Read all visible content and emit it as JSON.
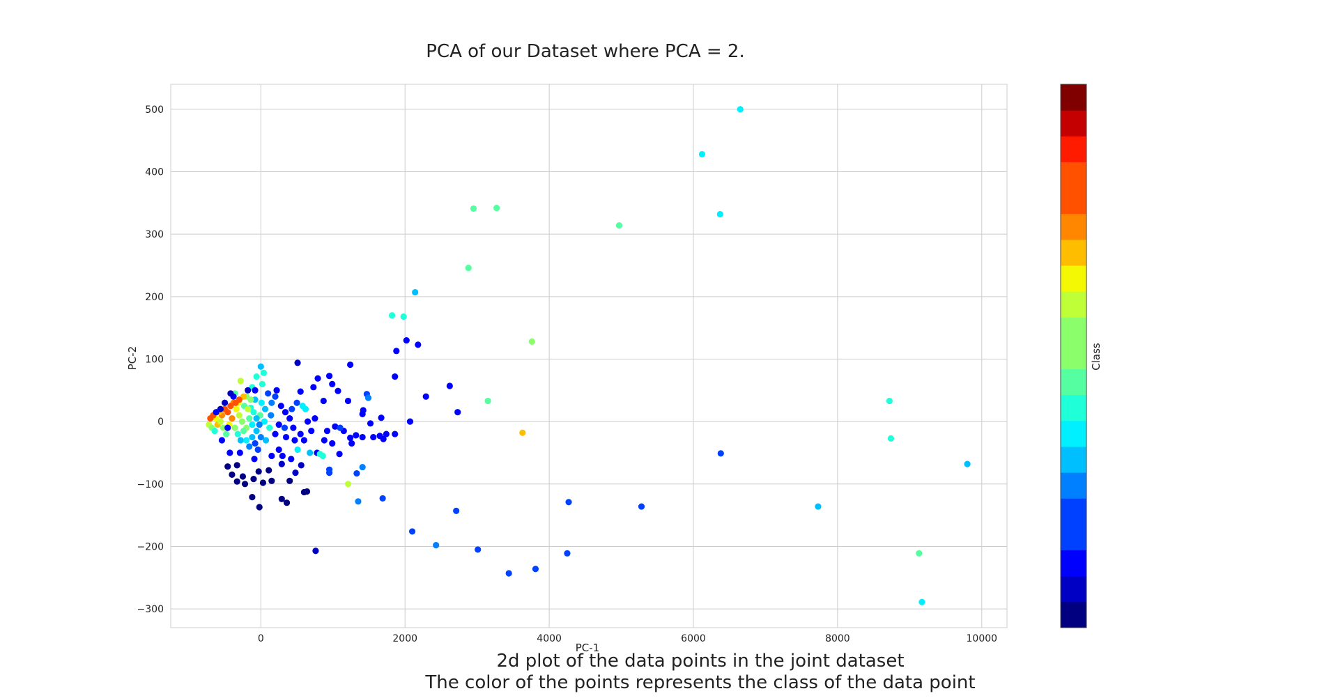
{
  "chart_data": {
    "type": "scatter",
    "title": "PCA of our Dataset where PCA = 2.",
    "xlabel": "PC-1",
    "ylabel": "PC-2",
    "xlim": [
      -1250,
      10350
    ],
    "ylim": [
      -330,
      540
    ],
    "xticks": [
      0,
      2000,
      4000,
      6000,
      8000,
      10000
    ],
    "xtick_labels": [
      "0",
      "2000",
      "4000",
      "6000",
      "8000",
      "10000"
    ],
    "yticks": [
      -300,
      -200,
      -100,
      0,
      100,
      200,
      300,
      400,
      500
    ],
    "ytick_labels": [
      "−300",
      "−200",
      "−100",
      "0",
      "100",
      "200",
      "300",
      "400",
      "500"
    ],
    "grid": true,
    "colorbar": {
      "label": "Class",
      "cmap": "jet",
      "n_bins": 21,
      "range": [
        0,
        20
      ]
    },
    "colors": {
      "background": "#ffffff",
      "grid": "#cccccc",
      "text": "#222222",
      "jet": [
        "#000080",
        "#0000c4",
        "#0000ff",
        "#0040ff",
        "#0080ff",
        "#00bfff",
        "#00f0ff",
        "#1fffd8",
        "#55ffa1",
        "#8aff6b",
        "#bfff37",
        "#f4f802",
        "#ffbd00",
        "#ff8700",
        "#ff5100",
        "#ff1b00",
        "#c40000",
        "#800000"
      ]
    },
    "points": [
      {
        "x": 6650,
        "y": 500,
        "c": 7
      },
      {
        "x": 6120,
        "y": 428,
        "c": 7
      },
      {
        "x": 6370,
        "y": 332,
        "c": 7
      },
      {
        "x": 2950,
        "y": 341,
        "c": 9
      },
      {
        "x": 3270,
        "y": 342,
        "c": 9
      },
      {
        "x": 4970,
        "y": 314,
        "c": 9
      },
      {
        "x": 2880,
        "y": 246,
        "c": 9
      },
      {
        "x": 2140,
        "y": 207,
        "c": 6
      },
      {
        "x": 1820,
        "y": 170,
        "c": 8
      },
      {
        "x": 1980,
        "y": 168,
        "c": 8
      },
      {
        "x": 3760,
        "y": 128,
        "c": 11
      },
      {
        "x": 2020,
        "y": 130,
        "c": 2
      },
      {
        "x": 2180,
        "y": 123,
        "c": 2
      },
      {
        "x": 1880,
        "y": 113,
        "c": 2
      },
      {
        "x": 1860,
        "y": 72,
        "c": 2
      },
      {
        "x": 2620,
        "y": 57,
        "c": 2
      },
      {
        "x": 2290,
        "y": 40,
        "c": 2
      },
      {
        "x": 3150,
        "y": 33,
        "c": 9
      },
      {
        "x": 2730,
        "y": 15,
        "c": 2
      },
      {
        "x": 2070,
        "y": 0,
        "c": 2
      },
      {
        "x": 3630,
        "y": -18,
        "c": 14
      },
      {
        "x": 8720,
        "y": 33,
        "c": 8
      },
      {
        "x": 8740,
        "y": -27,
        "c": 8
      },
      {
        "x": 6380,
        "y": -51,
        "c": 4
      },
      {
        "x": 9800,
        "y": -68,
        "c": 6
      },
      {
        "x": 1210,
        "y": -100,
        "c": 12
      },
      {
        "x": 1350,
        "y": -128,
        "c": 5
      },
      {
        "x": 1690,
        "y": -123,
        "c": 3
      },
      {
        "x": 2710,
        "y": -143,
        "c": 3
      },
      {
        "x": 4270,
        "y": -129,
        "c": 4
      },
      {
        "x": 5280,
        "y": -136,
        "c": 4
      },
      {
        "x": 7730,
        "y": -136,
        "c": 6
      },
      {
        "x": 2100,
        "y": -176,
        "c": 4
      },
      {
        "x": 2430,
        "y": -198,
        "c": 5
      },
      {
        "x": 3010,
        "y": -205,
        "c": 4
      },
      {
        "x": 4250,
        "y": -211,
        "c": 4
      },
      {
        "x": 3440,
        "y": -243,
        "c": 3
      },
      {
        "x": 3810,
        "y": -236,
        "c": 3
      },
      {
        "x": 9130,
        "y": -211,
        "c": 9
      },
      {
        "x": 9170,
        "y": -289,
        "c": 7
      },
      {
        "x": 760,
        "y": -207,
        "c": 1
      },
      {
        "x": -20,
        "y": -137,
        "c": 0
      },
      {
        "x": 290,
        "y": -124,
        "c": 0
      },
      {
        "x": 360,
        "y": -130,
        "c": 0
      },
      {
        "x": -120,
        "y": -121,
        "c": 0
      },
      {
        "x": 600,
        "y": -113,
        "c": 0
      },
      {
        "x": 640,
        "y": -112,
        "c": 0
      },
      {
        "x": -330,
        "y": -96,
        "c": 0
      },
      {
        "x": -220,
        "y": -100,
        "c": 0
      },
      {
        "x": -100,
        "y": -92,
        "c": 0
      },
      {
        "x": 30,
        "y": -98,
        "c": 0
      },
      {
        "x": -400,
        "y": -85,
        "c": 0
      },
      {
        "x": -250,
        "y": -88,
        "c": 0
      },
      {
        "x": -460,
        "y": -72,
        "c": 0
      },
      {
        "x": 150,
        "y": -95,
        "c": 0
      },
      {
        "x": -30,
        "y": -80,
        "c": 0
      },
      {
        "x": 400,
        "y": -95,
        "c": 0
      },
      {
        "x": 110,
        "y": -78,
        "c": 0
      },
      {
        "x": -330,
        "y": -70,
        "c": 0
      },
      {
        "x": 290,
        "y": -68,
        "c": 1
      },
      {
        "x": 480,
        "y": -82,
        "c": 1
      },
      {
        "x": 560,
        "y": -70,
        "c": 1
      },
      {
        "x": 950,
        "y": -82,
        "c": 4
      },
      {
        "x": 950,
        "y": -77,
        "c": 4
      },
      {
        "x": 1330,
        "y": -83,
        "c": 4
      },
      {
        "x": 1410,
        "y": -73,
        "c": 5
      },
      {
        "x": 510,
        "y": 94,
        "c": 1
      },
      {
        "x": 1240,
        "y": 91,
        "c": 2
      },
      {
        "x": 790,
        "y": 69,
        "c": 2
      },
      {
        "x": 950,
        "y": 73,
        "c": 2
      },
      {
        "x": 990,
        "y": 60,
        "c": 2
      },
      {
        "x": 1070,
        "y": 49,
        "c": 2
      },
      {
        "x": 730,
        "y": 55,
        "c": 2
      },
      {
        "x": 550,
        "y": 48,
        "c": 2
      },
      {
        "x": 1210,
        "y": 33,
        "c": 2
      },
      {
        "x": 1470,
        "y": 44,
        "c": 3
      },
      {
        "x": 1490,
        "y": 38,
        "c": 5
      },
      {
        "x": 870,
        "y": 33,
        "c": 2
      },
      {
        "x": 1420,
        "y": 18,
        "c": 2
      },
      {
        "x": 1410,
        "y": 12,
        "c": 2
      },
      {
        "x": 1670,
        "y": 6,
        "c": 2
      },
      {
        "x": 1520,
        "y": -3,
        "c": 2
      },
      {
        "x": 1030,
        "y": -8,
        "c": 2
      },
      {
        "x": 1150,
        "y": -15,
        "c": 2
      },
      {
        "x": 1320,
        "y": -22,
        "c": 2
      },
      {
        "x": 1410,
        "y": -25,
        "c": 2
      },
      {
        "x": 1560,
        "y": -25,
        "c": 2
      },
      {
        "x": 1650,
        "y": -23,
        "c": 2
      },
      {
        "x": 1740,
        "y": -20,
        "c": 2
      },
      {
        "x": 1860,
        "y": -20,
        "c": 2
      },
      {
        "x": 1700,
        "y": -28,
        "c": 2
      },
      {
        "x": 1260,
        "y": -35,
        "c": 2
      },
      {
        "x": 990,
        "y": -35,
        "c": 2
      },
      {
        "x": 780,
        "y": -50,
        "c": 2
      },
      {
        "x": 1090,
        "y": -52,
        "c": 2
      },
      {
        "x": 1240,
        "y": -26,
        "c": 2
      },
      {
        "x": 1100,
        "y": -10,
        "c": 3
      },
      {
        "x": 700,
        "y": -15,
        "c": 2
      },
      {
        "x": 600,
        "y": -30,
        "c": 2
      },
      {
        "x": 820,
        "y": -52,
        "c": 8
      },
      {
        "x": 860,
        "y": -55,
        "c": 8
      },
      {
        "x": 680,
        "y": -50,
        "c": 6
      },
      {
        "x": 510,
        "y": -45,
        "c": 7
      },
      {
        "x": 470,
        "y": -30,
        "c": 2
      },
      {
        "x": 350,
        "y": -25,
        "c": 2
      },
      {
        "x": 200,
        "y": -20,
        "c": 2
      },
      {
        "x": 250,
        "y": -45,
        "c": 2
      },
      {
        "x": 420,
        "y": -60,
        "c": 2
      },
      {
        "x": 300,
        "y": -55,
        "c": 2
      },
      {
        "x": 150,
        "y": -55,
        "c": 2
      },
      {
        "x": -90,
        "y": -60,
        "c": 2
      },
      {
        "x": -290,
        "y": -50,
        "c": 2
      },
      {
        "x": -430,
        "y": -50,
        "c": 2
      },
      {
        "x": -540,
        "y": -30,
        "c": 2
      },
      {
        "x": 620,
        "y": 20,
        "c": 7
      },
      {
        "x": 580,
        "y": 25,
        "c": 7
      },
      {
        "x": 500,
        "y": 30,
        "c": 3
      },
      {
        "x": 430,
        "y": 20,
        "c": 3
      },
      {
        "x": 340,
        "y": 15,
        "c": 2
      },
      {
        "x": 280,
        "y": 25,
        "c": 2
      },
      {
        "x": 200,
        "y": 40,
        "c": 3
      },
      {
        "x": 220,
        "y": 50,
        "c": 2
      },
      {
        "x": 100,
        "y": 45,
        "c": 4
      },
      {
        "x": 150,
        "y": 30,
        "c": 5
      },
      {
        "x": 140,
        "y": 10,
        "c": 5
      },
      {
        "x": 60,
        "y": 20,
        "c": 6
      },
      {
        "x": 0,
        "y": 88,
        "c": 6
      },
      {
        "x": 40,
        "y": 78,
        "c": 8
      },
      {
        "x": -60,
        "y": 72,
        "c": 8
      },
      {
        "x": 20,
        "y": 60,
        "c": 8
      },
      {
        "x": -280,
        "y": 65,
        "c": 12
      },
      {
        "x": -120,
        "y": 55,
        "c": 8
      },
      {
        "x": -360,
        "y": 45,
        "c": 9
      },
      {
        "x": -200,
        "y": 40,
        "c": 10
      },
      {
        "x": -310,
        "y": 30,
        "c": 13
      },
      {
        "x": -230,
        "y": 25,
        "c": 9
      },
      {
        "x": -140,
        "y": 22,
        "c": 8
      },
      {
        "x": -80,
        "y": 35,
        "c": 6
      },
      {
        "x": 10,
        "y": 30,
        "c": 7
      },
      {
        "x": -10,
        "y": 10,
        "c": 9
      },
      {
        "x": 50,
        "y": 0,
        "c": 7
      },
      {
        "x": 120,
        "y": -10,
        "c": 8
      },
      {
        "x": 70,
        "y": -30,
        "c": 6
      },
      {
        "x": 0,
        "y": -25,
        "c": 5
      },
      {
        "x": -60,
        "y": -15,
        "c": 6
      },
      {
        "x": -120,
        "y": -5,
        "c": 7
      },
      {
        "x": -160,
        "y": 5,
        "c": 9
      },
      {
        "x": -200,
        "y": -10,
        "c": 10
      },
      {
        "x": -260,
        "y": 0,
        "c": 11
      },
      {
        "x": -300,
        "y": 10,
        "c": 12
      },
      {
        "x": -340,
        "y": 20,
        "c": 13
      },
      {
        "x": -380,
        "y": 30,
        "c": 15
      },
      {
        "x": -420,
        "y": 25,
        "c": 16
      },
      {
        "x": -460,
        "y": 15,
        "c": 17
      },
      {
        "x": -500,
        "y": 20,
        "c": 16
      },
      {
        "x": -540,
        "y": 10,
        "c": 15
      },
      {
        "x": -580,
        "y": 15,
        "c": 14
      },
      {
        "x": -620,
        "y": 5,
        "c": 13
      },
      {
        "x": -660,
        "y": 10,
        "c": 17
      },
      {
        "x": -700,
        "y": 5,
        "c": 16
      },
      {
        "x": -720,
        "y": -5,
        "c": 12
      },
      {
        "x": -680,
        "y": -10,
        "c": 10
      },
      {
        "x": -640,
        "y": -15,
        "c": 8
      },
      {
        "x": -600,
        "y": -5,
        "c": 14
      },
      {
        "x": -560,
        "y": 0,
        "c": 12
      },
      {
        "x": -520,
        "y": -10,
        "c": 11
      },
      {
        "x": -480,
        "y": -20,
        "c": 9
      },
      {
        "x": -440,
        "y": -5,
        "c": 13
      },
      {
        "x": -400,
        "y": 5,
        "c": 15
      },
      {
        "x": -360,
        "y": -10,
        "c": 10
      },
      {
        "x": -320,
        "y": -20,
        "c": 8
      },
      {
        "x": -280,
        "y": -30,
        "c": 6
      },
      {
        "x": -240,
        "y": -15,
        "c": 9
      },
      {
        "x": -200,
        "y": -30,
        "c": 7
      },
      {
        "x": -160,
        "y": -40,
        "c": 5
      },
      {
        "x": -120,
        "y": -25,
        "c": 6
      },
      {
        "x": -80,
        "y": -35,
        "c": 4
      },
      {
        "x": -40,
        "y": -45,
        "c": 3
      },
      {
        "x": -240,
        "y": 40,
        "c": 14
      },
      {
        "x": -300,
        "y": 35,
        "c": 16
      },
      {
        "x": -350,
        "y": 30,
        "c": 17
      },
      {
        "x": -180,
        "y": 20,
        "c": 12
      },
      {
        "x": -140,
        "y": 35,
        "c": 10
      },
      {
        "x": -100,
        "y": 15,
        "c": 8
      },
      {
        "x": -60,
        "y": 5,
        "c": 6
      },
      {
        "x": -20,
        "y": -5,
        "c": 5
      },
      {
        "x": -460,
        "y": -10,
        "c": 2
      },
      {
        "x": -560,
        "y": 20,
        "c": 1
      },
      {
        "x": -620,
        "y": 15,
        "c": 2
      },
      {
        "x": -500,
        "y": 30,
        "c": 1
      },
      {
        "x": -380,
        "y": 40,
        "c": 2
      },
      {
        "x": -420,
        "y": 45,
        "c": 1
      },
      {
        "x": -80,
        "y": 50,
        "c": 2
      },
      {
        "x": -180,
        "y": 50,
        "c": 1
      },
      {
        "x": 250,
        "y": -5,
        "c": 2
      },
      {
        "x": 330,
        "y": -10,
        "c": 3
      },
      {
        "x": 400,
        "y": 5,
        "c": 2
      },
      {
        "x": 450,
        "y": -10,
        "c": 2
      },
      {
        "x": 550,
        "y": -20,
        "c": 2
      },
      {
        "x": 650,
        "y": 0,
        "c": 2
      },
      {
        "x": 750,
        "y": 5,
        "c": 2
      },
      {
        "x": 880,
        "y": -30,
        "c": 2
      },
      {
        "x": 920,
        "y": -15,
        "c": 2
      }
    ]
  },
  "captions": {
    "line1": "2d plot of the data points in the joint dataset",
    "line2": "The color of the points represents the class of the data point"
  }
}
